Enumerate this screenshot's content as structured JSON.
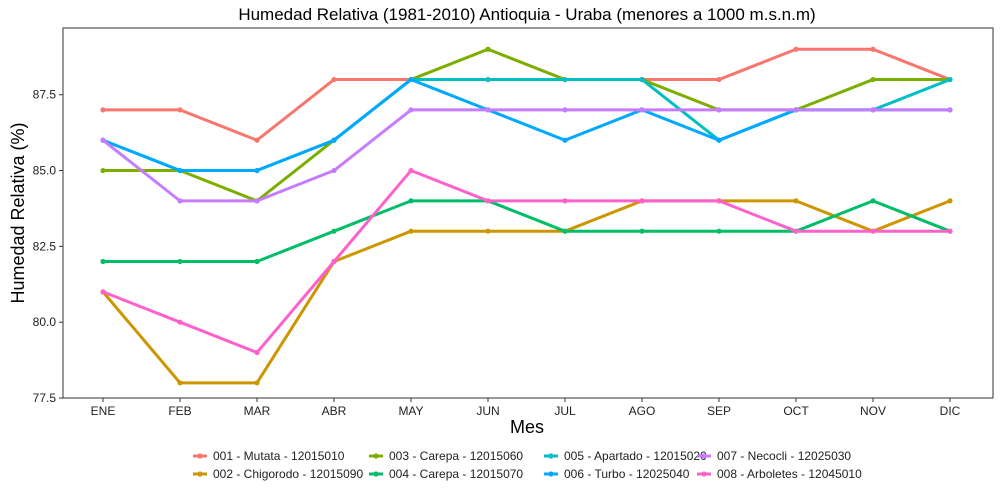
{
  "chart_data": {
    "type": "line",
    "title": "Humedad Relativa (1981-2010) Antioquia - Uraba (menores a 1000 m.s.n.m)",
    "xlabel": "Mes",
    "ylabel": "Humedad Relativa (%)",
    "categories": [
      "ENE",
      "FEB",
      "MAR",
      "ABR",
      "MAY",
      "JUN",
      "JUL",
      "AGO",
      "SEP",
      "OCT",
      "NOV",
      "DIC"
    ],
    "ylim": [
      77.5,
      89.7
    ],
    "yticks": [
      "77.5",
      "80.0",
      "82.5",
      "85.0",
      "87.5"
    ],
    "grid": false,
    "legend_position": "bottom",
    "series": [
      {
        "name": "001 - Mutata - 12015010",
        "color": "#F8766D",
        "values": [
          87,
          87,
          86,
          88,
          88,
          88,
          88,
          88,
          88,
          89,
          89,
          88
        ]
      },
      {
        "name": "002 - Chigorodo - 12015090",
        "color": "#CD9600",
        "values": [
          81,
          78,
          78,
          82,
          83,
          83,
          83,
          84,
          84,
          84,
          83,
          84
        ]
      },
      {
        "name": "003 - Carepa - 12015060",
        "color": "#7CAE00",
        "values": [
          85,
          85,
          84,
          86,
          88,
          89,
          88,
          88,
          87,
          87,
          88,
          88
        ]
      },
      {
        "name": "004 - Carepa - 12015070",
        "color": "#00BE67",
        "values": [
          82,
          82,
          82,
          83,
          84,
          84,
          83,
          83,
          83,
          83,
          84,
          83
        ]
      },
      {
        "name": "005 - Apartado - 12015020",
        "color": "#00BFC4",
        "values": [
          86,
          85,
          85,
          86,
          88,
          88,
          88,
          88,
          86,
          87,
          87,
          88
        ]
      },
      {
        "name": "006 - Turbo - 12025040",
        "color": "#00A9FF",
        "values": [
          86,
          85,
          85,
          86,
          88,
          87,
          86,
          87,
          86,
          87,
          87,
          87
        ]
      },
      {
        "name": "007 - Necocli - 12025030",
        "color": "#C77CFF",
        "values": [
          86,
          84,
          84,
          85,
          87,
          87,
          87,
          87,
          87,
          87,
          87,
          87
        ]
      },
      {
        "name": "008 - Arboletes - 12045010",
        "color": "#FF61CC",
        "values": [
          81,
          80,
          79,
          82,
          85,
          84,
          84,
          84,
          84,
          83,
          83,
          83
        ]
      }
    ]
  }
}
